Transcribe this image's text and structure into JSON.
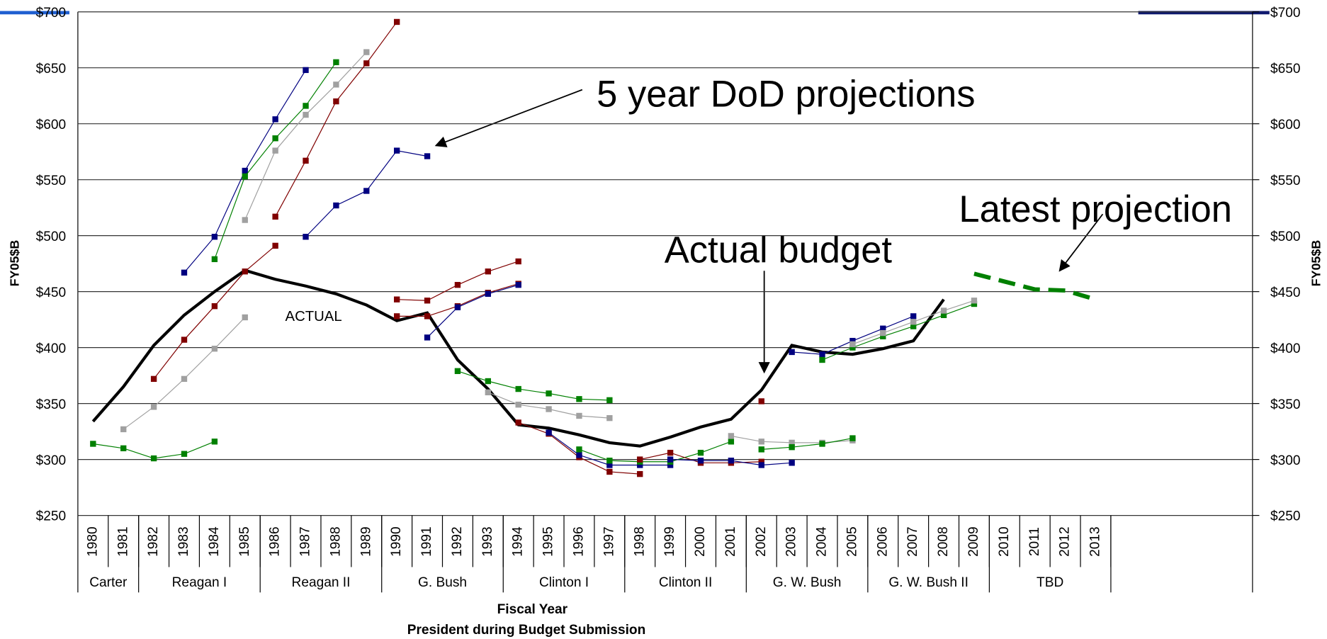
{
  "chart_data": {
    "type": "line",
    "y_label": "FY05$B",
    "y2_label": "FY05$B",
    "x_label": "Fiscal Year",
    "x_label2": "President during Budget Submission",
    "annotations": [
      "5 year DoD projections",
      "Actual budget",
      "Latest projection",
      "ACTUAL"
    ],
    "categories": [
      "1980",
      "1981",
      "1982",
      "1983",
      "1984",
      "1985",
      "1986",
      "1987",
      "1988",
      "1989",
      "1990",
      "1991",
      "1992",
      "1993",
      "1994",
      "1995",
      "1996",
      "1997",
      "1998",
      "1999",
      "2000",
      "2001",
      "2002",
      "2003",
      "2004",
      "2005",
      "2006",
      "2007",
      "2008",
      "2009",
      "2010",
      "2011",
      "2012",
      "2013"
    ],
    "presidents": [
      {
        "name": "Carter",
        "span": 2
      },
      {
        "name": "Reagan I",
        "span": 4
      },
      {
        "name": "Reagan II",
        "span": 4
      },
      {
        "name": "G. Bush",
        "span": 4
      },
      {
        "name": "Clinton I",
        "span": 4
      },
      {
        "name": "Clinton II",
        "span": 4
      },
      {
        "name": "G. W. Bush",
        "span": 4
      },
      {
        "name": "G. W. Bush II",
        "span": 4
      },
      {
        "name": "TBD",
        "span": 4
      }
    ],
    "ylim": [
      250,
      700
    ],
    "yticks": [
      {
        "value": 250,
        "label": "$250"
      },
      {
        "value": 300,
        "label": "$300"
      },
      {
        "value": 350,
        "label": "$350"
      },
      {
        "value": 400,
        "label": "$400"
      },
      {
        "value": 450,
        "label": "$450"
      },
      {
        "value": 500,
        "label": "$500"
      },
      {
        "value": 550,
        "label": "$550"
      },
      {
        "value": 600,
        "label": "$600"
      },
      {
        "value": 650,
        "label": "$650"
      },
      {
        "value": 700,
        "label": "$700"
      }
    ],
    "y2lim": [
      250,
      700
    ],
    "y2ticks": [
      {
        "value": 250,
        "label": "$250"
      },
      {
        "value": 300,
        "label": "$300"
      },
      {
        "value": 350,
        "label": "$350"
      },
      {
        "value": 400,
        "label": "$400"
      },
      {
        "value": 450,
        "label": "$450"
      },
      {
        "value": 500,
        "label": "$500"
      },
      {
        "value": 550,
        "label": "$550"
      },
      {
        "value": 600,
        "label": "$600"
      },
      {
        "value": 650,
        "label": "$650"
      },
      {
        "value": 700,
        "label": "$700"
      }
    ],
    "grid": true,
    "series": [
      {
        "color": "#000000",
        "width": 3.5,
        "markers": false,
        "values": [
          334,
          365,
          402,
          429,
          450,
          469,
          461,
          455,
          448,
          438,
          424,
          431,
          389,
          363,
          331,
          328,
          322,
          315,
          312,
          320,
          329,
          336,
          362,
          402,
          396,
          394,
          399,
          406,
          443,
          null,
          null,
          null,
          null,
          null
        ]
      },
      {
        "color": "#008000",
        "width": 5,
        "dash": true,
        "markers": false,
        "values": [
          null,
          null,
          null,
          null,
          null,
          null,
          null,
          null,
          null,
          null,
          null,
          null,
          null,
          null,
          null,
          null,
          null,
          null,
          null,
          null,
          null,
          null,
          null,
          null,
          null,
          null,
          null,
          null,
          null,
          466,
          459,
          452,
          451,
          443
        ]
      },
      {
        "color": "#008000",
        "values": [
          314,
          310,
          301,
          305,
          316,
          null,
          null,
          null,
          null,
          null,
          null,
          null,
          null,
          null,
          null,
          null,
          null,
          null,
          null,
          null,
          null,
          null,
          null,
          null,
          null,
          null,
          null,
          null,
          null,
          null,
          null,
          null,
          null,
          null
        ]
      },
      {
        "color": "#a0a0a0",
        "values": [
          null,
          327,
          347,
          372,
          399,
          427,
          null,
          null,
          null,
          null,
          null,
          null,
          null,
          null,
          null,
          null,
          null,
          null,
          null,
          null,
          null,
          null,
          null,
          null,
          null,
          null,
          null,
          null,
          null,
          null,
          null,
          null,
          null,
          null
        ]
      },
      {
        "color": "#800000",
        "values": [
          null,
          null,
          372,
          407,
          437,
          468,
          491,
          null,
          null,
          null,
          null,
          null,
          null,
          null,
          null,
          null,
          null,
          null,
          null,
          null,
          null,
          null,
          null,
          null,
          null,
          null,
          null,
          null,
          null,
          null,
          null,
          null,
          null,
          null
        ]
      },
      {
        "color": "#000080",
        "values": [
          null,
          null,
          null,
          467,
          499,
          558,
          604,
          648,
          null,
          null,
          null,
          null,
          null,
          null,
          null,
          null,
          null,
          null,
          null,
          null,
          null,
          null,
          null,
          null,
          null,
          null,
          null,
          null,
          null,
          null,
          null,
          null,
          null,
          null
        ]
      },
      {
        "color": "#008000",
        "values": [
          null,
          null,
          null,
          null,
          479,
          553,
          587,
          616,
          655,
          null,
          null,
          null,
          null,
          null,
          null,
          null,
          null,
          null,
          null,
          null,
          null,
          null,
          null,
          null,
          null,
          null,
          null,
          null,
          null,
          null,
          null,
          null,
          null,
          null
        ]
      },
      {
        "color": "#a0a0a0",
        "values": [
          null,
          null,
          null,
          null,
          null,
          514,
          576,
          608,
          635,
          664,
          null,
          null,
          null,
          null,
          null,
          null,
          null,
          null,
          null,
          null,
          null,
          null,
          null,
          null,
          null,
          null,
          null,
          null,
          null,
          null,
          null,
          null,
          null,
          null
        ]
      },
      {
        "color": "#800000",
        "values": [
          null,
          null,
          null,
          null,
          null,
          null,
          517,
          567,
          620,
          654,
          691,
          null,
          null,
          null,
          null,
          null,
          null,
          null,
          null,
          null,
          null,
          null,
          null,
          null,
          null,
          null,
          null,
          null,
          null,
          null,
          null,
          null,
          null,
          null
        ]
      },
      {
        "color": "#000080",
        "values": [
          null,
          null,
          null,
          null,
          null,
          null,
          null,
          499,
          527,
          540,
          576,
          571,
          null,
          null,
          null,
          null,
          null,
          null,
          null,
          null,
          null,
          null,
          null,
          null,
          null,
          null,
          null,
          null,
          null,
          null,
          null,
          null,
          null,
          null
        ]
      },
      {
        "color": "#800000",
        "values": [
          null,
          null,
          null,
          null,
          null,
          null,
          null,
          null,
          null,
          null,
          443,
          442,
          456,
          468,
          477,
          null,
          null,
          null,
          null,
          null,
          null,
          null,
          null,
          null,
          null,
          null,
          null,
          null,
          null,
          null,
          null,
          null,
          null,
          null
        ]
      },
      {
        "color": "#800000",
        "values": [
          null,
          null,
          null,
          null,
          null,
          null,
          null,
          null,
          null,
          null,
          428,
          428,
          437,
          449,
          457,
          null,
          null,
          null,
          null,
          null,
          null,
          null,
          null,
          null,
          null,
          null,
          null,
          null,
          null,
          null,
          null,
          null,
          null,
          null
        ]
      },
      {
        "color": "#000080",
        "values": [
          null,
          null,
          null,
          null,
          null,
          null,
          null,
          null,
          null,
          null,
          null,
          409,
          436,
          448,
          456,
          null,
          null,
          null,
          null,
          null,
          null,
          null,
          null,
          null,
          null,
          null,
          null,
          null,
          null,
          null,
          null,
          null,
          null,
          null
        ]
      },
      {
        "color": "#008000",
        "values": [
          null,
          null,
          null,
          null,
          null,
          null,
          null,
          null,
          null,
          null,
          null,
          null,
          379,
          370,
          363,
          359,
          354,
          353,
          null,
          null,
          null,
          null,
          null,
          null,
          null,
          null,
          null,
          null,
          null,
          null,
          null,
          null,
          null,
          null
        ]
      },
      {
        "color": "#a0a0a0",
        "values": [
          null,
          null,
          null,
          null,
          null,
          null,
          null,
          null,
          null,
          null,
          null,
          null,
          null,
          360,
          349,
          345,
          339,
          337,
          null,
          null,
          null,
          null,
          null,
          null,
          null,
          null,
          null,
          null,
          null,
          null,
          null,
          null,
          null,
          null
        ]
      },
      {
        "color": "#800000",
        "values": [
          null,
          null,
          null,
          null,
          null,
          null,
          null,
          null,
          null,
          null,
          null,
          null,
          null,
          null,
          333,
          323,
          302,
          289,
          287,
          null,
          null,
          null,
          null,
          null,
          null,
          null,
          null,
          null,
          null,
          null,
          null,
          null,
          null,
          null
        ]
      },
      {
        "color": "#000080",
        "values": [
          null,
          null,
          null,
          null,
          null,
          null,
          null,
          null,
          null,
          null,
          null,
          null,
          null,
          null,
          null,
          324,
          304,
          295,
          295,
          295,
          null,
          null,
          null,
          null,
          null,
          null,
          null,
          null,
          null,
          null,
          null,
          null,
          null,
          null
        ]
      },
      {
        "color": "#008000",
        "values": [
          null,
          null,
          null,
          null,
          null,
          null,
          null,
          null,
          null,
          null,
          null,
          null,
          null,
          null,
          null,
          null,
          309,
          299,
          298,
          298,
          306,
          316,
          null,
          null,
          null,
          null,
          null,
          null,
          null,
          null,
          null,
          null,
          null,
          null
        ]
      },
      {
        "color": "#800000",
        "values": [
          null,
          null,
          null,
          null,
          null,
          null,
          null,
          null,
          null,
          null,
          null,
          null,
          null,
          null,
          null,
          null,
          null,
          null,
          300,
          306,
          297,
          297,
          298,
          null,
          null,
          null,
          null,
          null,
          null,
          null,
          null,
          null,
          null,
          null
        ]
      },
      {
        "color": "#000080",
        "values": [
          null,
          null,
          null,
          null,
          null,
          null,
          null,
          null,
          null,
          null,
          null,
          null,
          null,
          null,
          null,
          null,
          null,
          null,
          null,
          300,
          299,
          299,
          295,
          297,
          null,
          null,
          null,
          null,
          null,
          null,
          null,
          null,
          null,
          null
        ]
      },
      {
        "color": "#a0a0a0",
        "values": [
          null,
          null,
          null,
          null,
          null,
          null,
          null,
          null,
          null,
          null,
          null,
          null,
          null,
          null,
          null,
          null,
          null,
          null,
          null,
          null,
          null,
          321,
          316,
          315,
          315,
          317,
          null,
          null,
          null,
          null,
          null,
          null,
          null,
          null
        ]
      },
      {
        "color": "#008000",
        "values": [
          null,
          null,
          null,
          null,
          null,
          null,
          null,
          null,
          null,
          null,
          null,
          null,
          null,
          null,
          null,
          null,
          null,
          null,
          null,
          null,
          null,
          null,
          309,
          311,
          314,
          319,
          null,
          null,
          null,
          null,
          null,
          null,
          null,
          null
        ]
      },
      {
        "color": "#800000",
        "values": [
          null,
          null,
          null,
          null,
          null,
          null,
          null,
          null,
          null,
          null,
          null,
          null,
          null,
          null,
          null,
          null,
          null,
          null,
          null,
          null,
          null,
          null,
          352,
          null,
          null,
          null,
          null,
          null,
          null,
          null,
          null,
          null,
          null,
          null
        ]
      },
      {
        "color": "#000080",
        "values": [
          null,
          null,
          null,
          null,
          null,
          null,
          null,
          null,
          null,
          null,
          null,
          null,
          null,
          null,
          null,
          null,
          null,
          null,
          null,
          null,
          null,
          null,
          null,
          396,
          394,
          406,
          417,
          428,
          null,
          null,
          null,
          null,
          null,
          null
        ]
      },
      {
        "color": "#008000",
        "values": [
          null,
          null,
          null,
          null,
          null,
          null,
          null,
          null,
          null,
          null,
          null,
          null,
          null,
          null,
          null,
          null,
          null,
          null,
          null,
          null,
          null,
          null,
          null,
          null,
          389,
          400,
          410,
          419,
          429,
          439,
          null,
          null,
          null,
          null
        ]
      },
      {
        "color": "#a0a0a0",
        "values": [
          null,
          null,
          null,
          null,
          null,
          null,
          null,
          null,
          null,
          null,
          null,
          null,
          null,
          null,
          null,
          null,
          null,
          null,
          null,
          null,
          null,
          null,
          null,
          null,
          null,
          403,
          413,
          423,
          433,
          442,
          null,
          null,
          null,
          null
        ]
      }
    ]
  }
}
